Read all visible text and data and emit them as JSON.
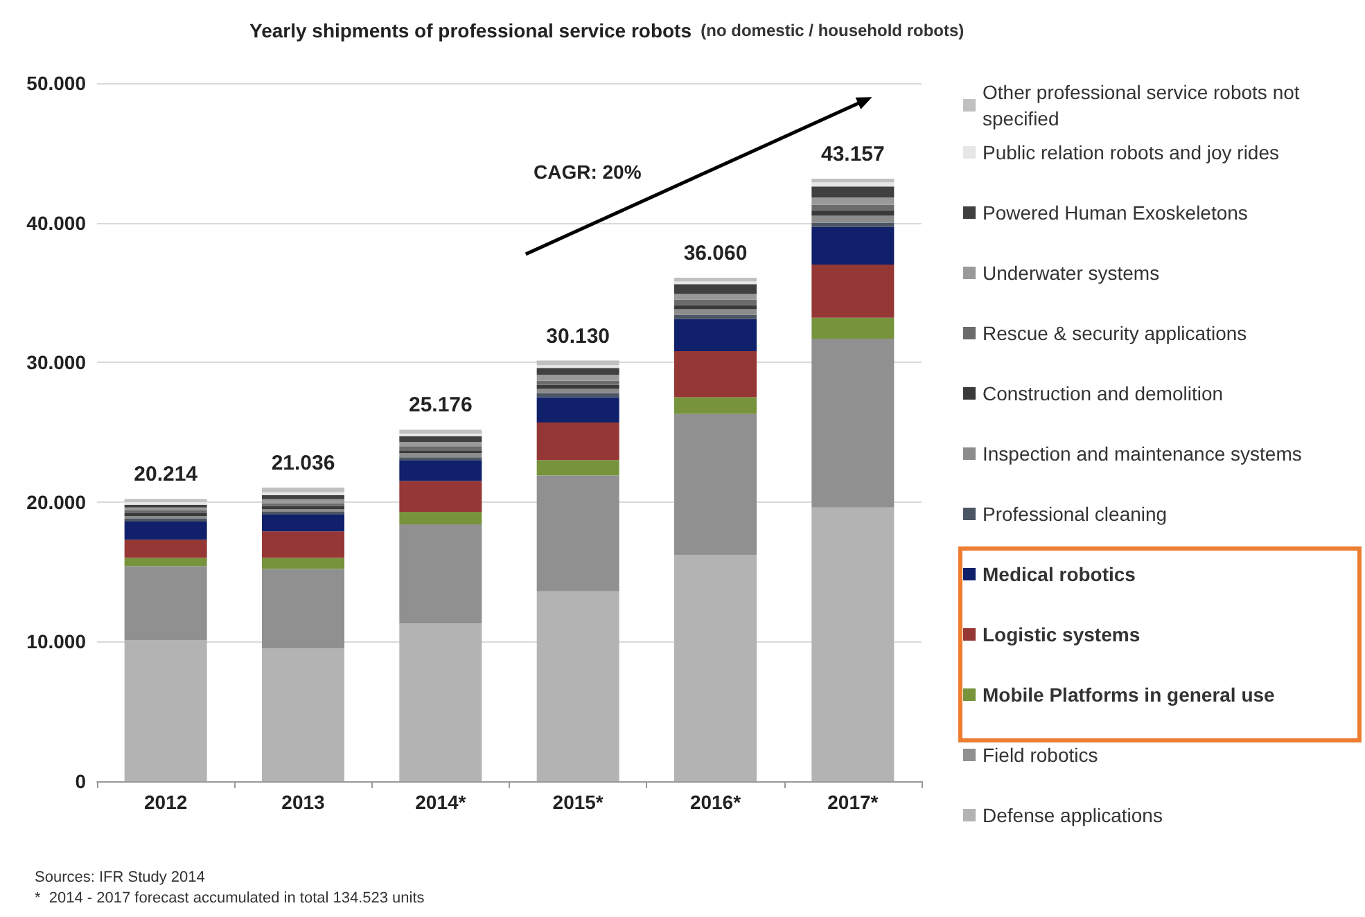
{
  "chart_data": {
    "type": "bar",
    "stacked": true,
    "title": "Yearly shipments of professional service robots",
    "subtitle": "(no domestic / household robots)",
    "categories": [
      "2012",
      "2013",
      "2014*",
      "2015*",
      "2016*",
      "2017*"
    ],
    "series": [
      {
        "name": "Defense applications",
        "color": "#b3b3b3",
        "values": [
          10100,
          9500,
          11300,
          13600,
          16200,
          19600
        ]
      },
      {
        "name": "Field robotics",
        "color": "#909090",
        "values": [
          5300,
          5700,
          7100,
          8300,
          10100,
          12100
        ]
      },
      {
        "name": "Mobile Platforms in general use",
        "color": "#77933c",
        "values": [
          600,
          800,
          900,
          1100,
          1200,
          1500
        ]
      },
      {
        "name": "Logistic systems",
        "color": "#953735",
        "values": [
          1300,
          1900,
          2200,
          2700,
          3300,
          3800
        ]
      },
      {
        "name": "Medical robotics",
        "color": "#10206a",
        "values": [
          1300,
          1200,
          1500,
          1800,
          2300,
          2700
        ]
      },
      {
        "name": "Professional cleaning",
        "color": "#4b5563",
        "values": [
          200,
          200,
          200,
          300,
          300,
          300
        ]
      },
      {
        "name": "Inspection and maintenance systems",
        "color": "#8c8c8c",
        "values": [
          200,
          200,
          300,
          300,
          400,
          500
        ]
      },
      {
        "name": "Construction and demolition",
        "color": "#3a3a3a",
        "values": [
          200,
          200,
          200,
          300,
          300,
          400
        ]
      },
      {
        "name": "Rescue & security applications",
        "color": "#6b6b6b",
        "values": [
          200,
          200,
          300,
          300,
          400,
          400
        ]
      },
      {
        "name": "Underwater systems",
        "color": "#999999",
        "values": [
          200,
          300,
          300,
          400,
          400,
          500
        ]
      },
      {
        "name": "Powered Human Exoskeletons",
        "color": "#404040",
        "values": [
          200,
          300,
          400,
          500,
          700,
          800
        ]
      },
      {
        "name": "Public relation robots and joy rides",
        "color": "#e6e6e6",
        "values": [
          200,
          200,
          200,
          200,
          200,
          300
        ]
      },
      {
        "name": "Other professional service robots not specified",
        "color": "#c0c0c0",
        "values": [
          214,
          336,
          276,
          330,
          260,
          257
        ]
      }
    ],
    "totals": [
      "20.214",
      "21.036",
      "25.176",
      "30.130",
      "36.060",
      "43.157"
    ],
    "ylim": [
      0,
      50000
    ],
    "yticks": [
      {
        "value": 0,
        "label": "0"
      },
      {
        "value": 10000,
        "label": "10.000"
      },
      {
        "value": 20000,
        "label": "20.000"
      },
      {
        "value": 30000,
        "label": "30.000"
      },
      {
        "value": 40000,
        "label": "40.000"
      },
      {
        "value": 50000,
        "label": "50.000"
      }
    ],
    "grid": "y",
    "legend": "right",
    "annotations": [
      "CAGR: 20%",
      "Sources: IFR Study 2014",
      "*  2014 - 2017 forecast accumulated in total 134.523 units"
    ]
  }
}
